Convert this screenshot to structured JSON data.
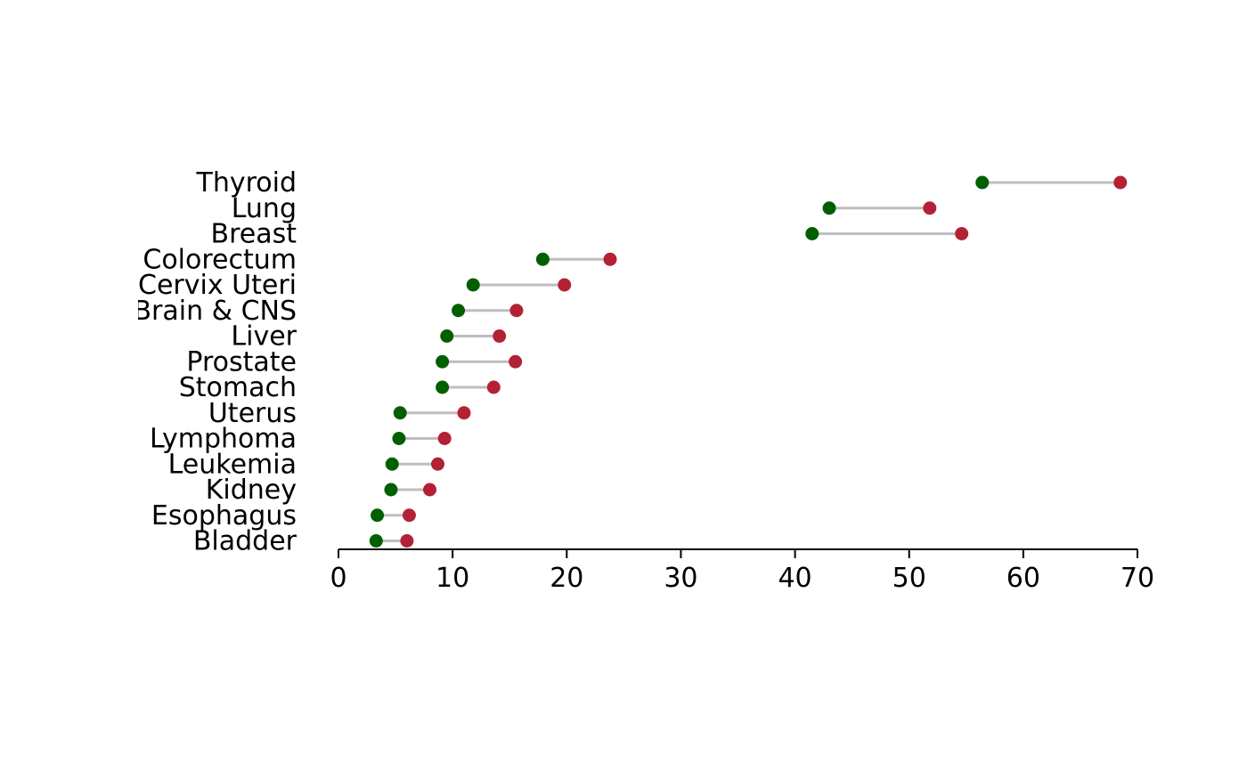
{
  "chart_data": {
    "type": "dumbbell",
    "categories": [
      "Thyroid",
      "Lung",
      "Breast",
      "Colorectum",
      "Cervix Uteri",
      "Brain & CNS",
      "Liver",
      "Prostate",
      "Stomach",
      "Uterus",
      "Lymphoma",
      "Leukemia",
      "Kidney",
      "Esophagus",
      "Bladder"
    ],
    "series": [
      {
        "color": "#006000",
        "values": [
          56.4,
          43.0,
          41.5,
          17.9,
          11.8,
          10.5,
          9.5,
          9.1,
          9.1,
          5.4,
          5.3,
          4.7,
          4.6,
          3.4,
          3.3
        ]
      },
      {
        "color": "#b22234",
        "values": [
          68.5,
          51.8,
          54.6,
          23.8,
          19.8,
          15.6,
          14.1,
          15.5,
          13.6,
          11.0,
          9.3,
          8.7,
          8.0,
          6.2,
          6.0
        ]
      }
    ],
    "segment_color": "#bebebe",
    "xlim": [
      0,
      70
    ],
    "xticks": [
      0,
      10,
      20,
      30,
      40,
      50,
      60,
      70
    ],
    "xlabel": "",
    "ylabel": "",
    "title": "",
    "grid": false,
    "legend": "none"
  }
}
